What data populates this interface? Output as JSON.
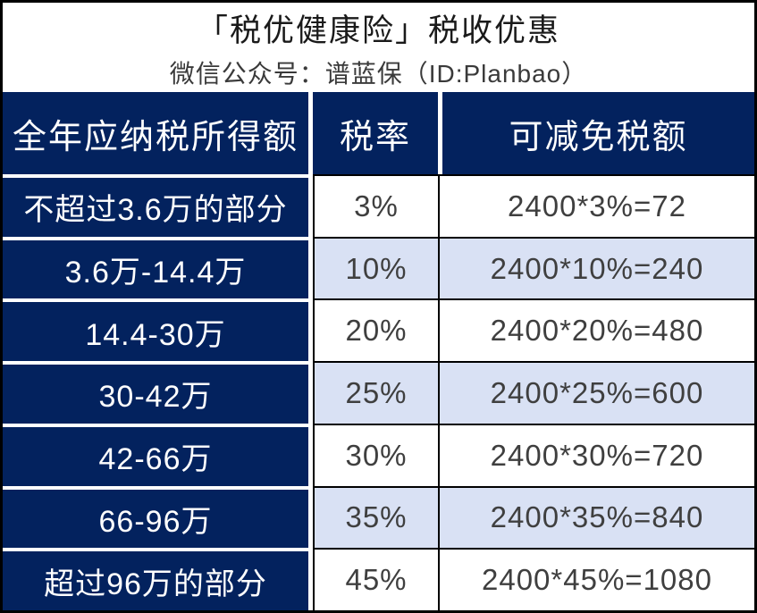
{
  "chart_data": {
    "type": "table",
    "title": "「税优健康险」税收优惠",
    "subtitle": "微信公众号：谱蓝保（ID:Planbao）",
    "columns": [
      "全年应纳税所得额",
      "税率",
      "可减免税额"
    ],
    "rows": [
      [
        "不超过3.6万的部分",
        "3%",
        "2400*3%=72"
      ],
      [
        "3.6万-14.4万",
        "10%",
        "2400*10%=240"
      ],
      [
        "14.4-30万",
        "20%",
        "2400*20%=480"
      ],
      [
        "30-42万",
        "25%",
        "2400*25%=600"
      ],
      [
        "42-66万",
        "30%",
        "2400*30%=720"
      ],
      [
        "66-96万",
        "35%",
        "2400*35%=840"
      ],
      [
        "超过96万的部分",
        "45%",
        "2400*45%=1080"
      ]
    ],
    "layout": {
      "banded_rows": [
        2,
        4,
        6
      ],
      "header_style": "navy-filled",
      "first_column_style": "navy-filled"
    }
  },
  "colors": {
    "header_navy": "#03225e",
    "band_blue": "#d9e1f4",
    "cell_text": "#3f3f3f",
    "border_black": "#000000",
    "header_text": "#ffffff"
  }
}
